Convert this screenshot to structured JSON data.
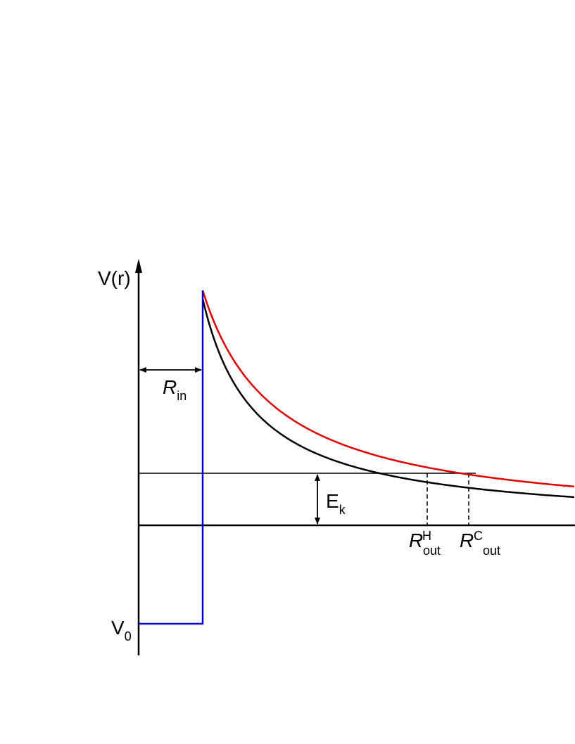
{
  "labels": {
    "y_axis": "V(r)",
    "v0": {
      "base": "V",
      "sub": "0"
    },
    "r_in": {
      "base": "R",
      "sub": "in"
    },
    "e_k": {
      "base": "E",
      "sub": "k"
    },
    "r_out_h": {
      "base": "R",
      "sup": "H",
      "sub": "out"
    },
    "r_out_c": {
      "base": "R",
      "sup": "C",
      "sub": "out"
    }
  }
}
